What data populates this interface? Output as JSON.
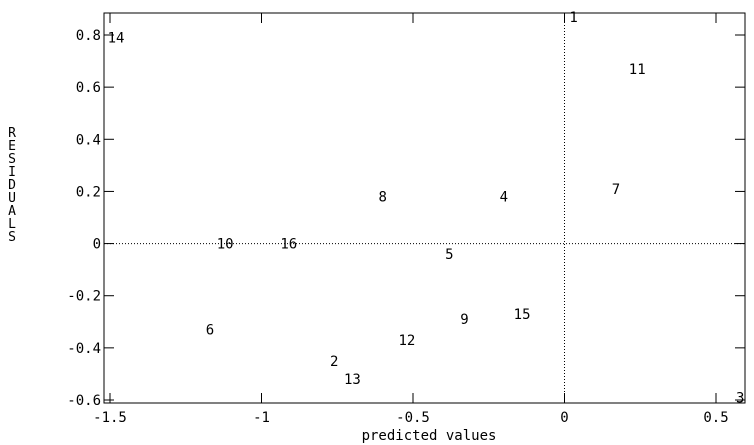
{
  "chart_data": {
    "type": "scatter",
    "title": "",
    "xlabel": "predicted values",
    "ylabel": "RESIDUALS",
    "xlim": [
      -1.5,
      0.6
    ],
    "ylim": [
      -0.6,
      0.8
    ],
    "x_ticks": [
      -1.5,
      -1,
      -0.5,
      0,
      0.5
    ],
    "x_tick_labels": [
      "-1.5",
      "-1",
      "-0.5",
      "0",
      "0.5"
    ],
    "y_ticks": [
      -0.6,
      -0.4,
      -0.2,
      0,
      0.2,
      0.4,
      0.6,
      0.8
    ],
    "y_tick_labels": [
      "-0.6",
      "-0.4",
      "-0.2",
      "0",
      "0.2",
      "0.4",
      "0.6",
      "0.8"
    ],
    "reference_lines": {
      "x": 0,
      "y": 0,
      "style": "dotted"
    },
    "grid": false,
    "points": [
      {
        "label": "1",
        "x": 0.03,
        "y": 0.87
      },
      {
        "label": "2",
        "x": -0.76,
        "y": -0.45
      },
      {
        "label": "3",
        "x": 0.58,
        "y": -0.59
      },
      {
        "label": "4",
        "x": -0.2,
        "y": 0.18
      },
      {
        "label": "5",
        "x": -0.38,
        "y": -0.04
      },
      {
        "label": "6",
        "x": -1.17,
        "y": -0.33
      },
      {
        "label": "7",
        "x": 0.17,
        "y": 0.21
      },
      {
        "label": "8",
        "x": -0.6,
        "y": 0.18
      },
      {
        "label": "9",
        "x": -0.33,
        "y": -0.29
      },
      {
        "label": "10",
        "x": -1.12,
        "y": 0.0
      },
      {
        "label": "11",
        "x": 0.24,
        "y": 0.67
      },
      {
        "label": "12",
        "x": -0.52,
        "y": -0.37
      },
      {
        "label": "13",
        "x": -0.7,
        "y": -0.52
      },
      {
        "label": "14",
        "x": -1.48,
        "y": 0.79
      },
      {
        "label": "15",
        "x": -0.14,
        "y": -0.27
      },
      {
        "label": "16",
        "x": -0.91,
        "y": 0.0
      }
    ]
  }
}
